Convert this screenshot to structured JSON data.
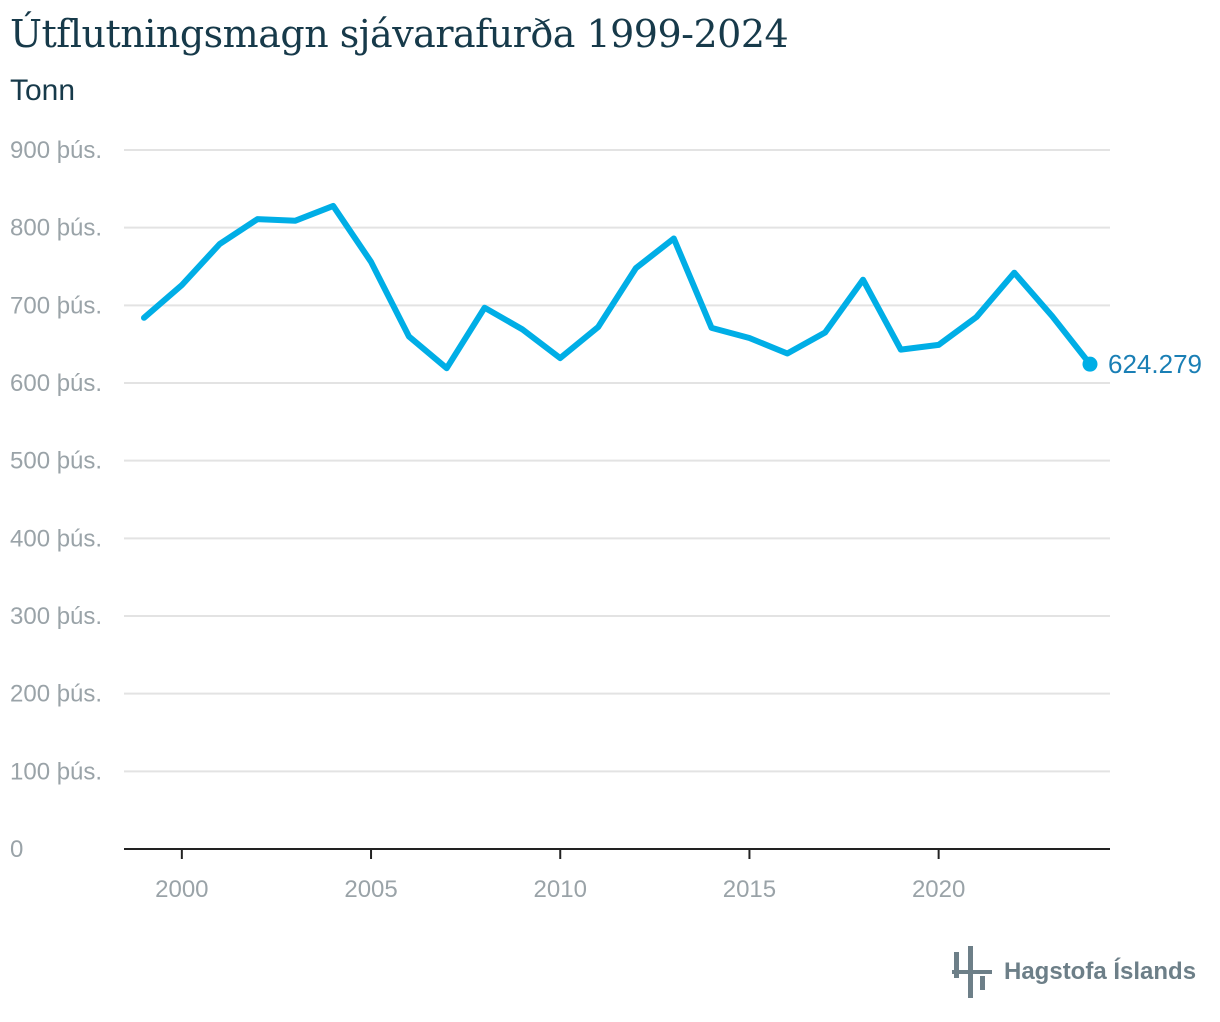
{
  "chart_data": {
    "type": "line",
    "title": "Útflutningsmagn sjávarafurða 1999-2024",
    "subtitle": "Tonn",
    "x": [
      1999,
      2000,
      2001,
      2002,
      2003,
      2004,
      2005,
      2006,
      2007,
      2008,
      2009,
      2010,
      2011,
      2012,
      2013,
      2014,
      2015,
      2016,
      2017,
      2018,
      2019,
      2020,
      2021,
      2022,
      2023,
      2024
    ],
    "series": [
      {
        "values": [
          684000,
          726000,
          779000,
          811000,
          809000,
          828000,
          756000,
          660000,
          619000,
          697000,
          669000,
          632000,
          672000,
          748000,
          786000,
          671000,
          658000,
          638000,
          665000,
          733000,
          643000,
          649000,
          685000,
          742000,
          686000,
          624279
        ]
      }
    ],
    "ylim": [
      0,
      900000
    ],
    "yticks": [
      0,
      100000,
      200000,
      300000,
      400000,
      500000,
      600000,
      700000,
      800000,
      900000
    ],
    "ytick_labels": [
      "0",
      "100 þús.",
      "200 þús.",
      "300 þús.",
      "400 þús.",
      "500 þús.",
      "600 þús.",
      "700 þús.",
      "800 þús.",
      "900 þús."
    ],
    "xticks": [
      2000,
      2005,
      2010,
      2015,
      2020
    ],
    "xtick_labels": [
      "2000",
      "2005",
      "2010",
      "2015",
      "2020"
    ],
    "end_label": "624.279",
    "grid": true,
    "xlabel": "",
    "ylabel": "",
    "line_color": "#00aee6",
    "label_color": "#1a7fb5"
  },
  "footer": {
    "logo_text": "Hagstofa Íslands"
  }
}
